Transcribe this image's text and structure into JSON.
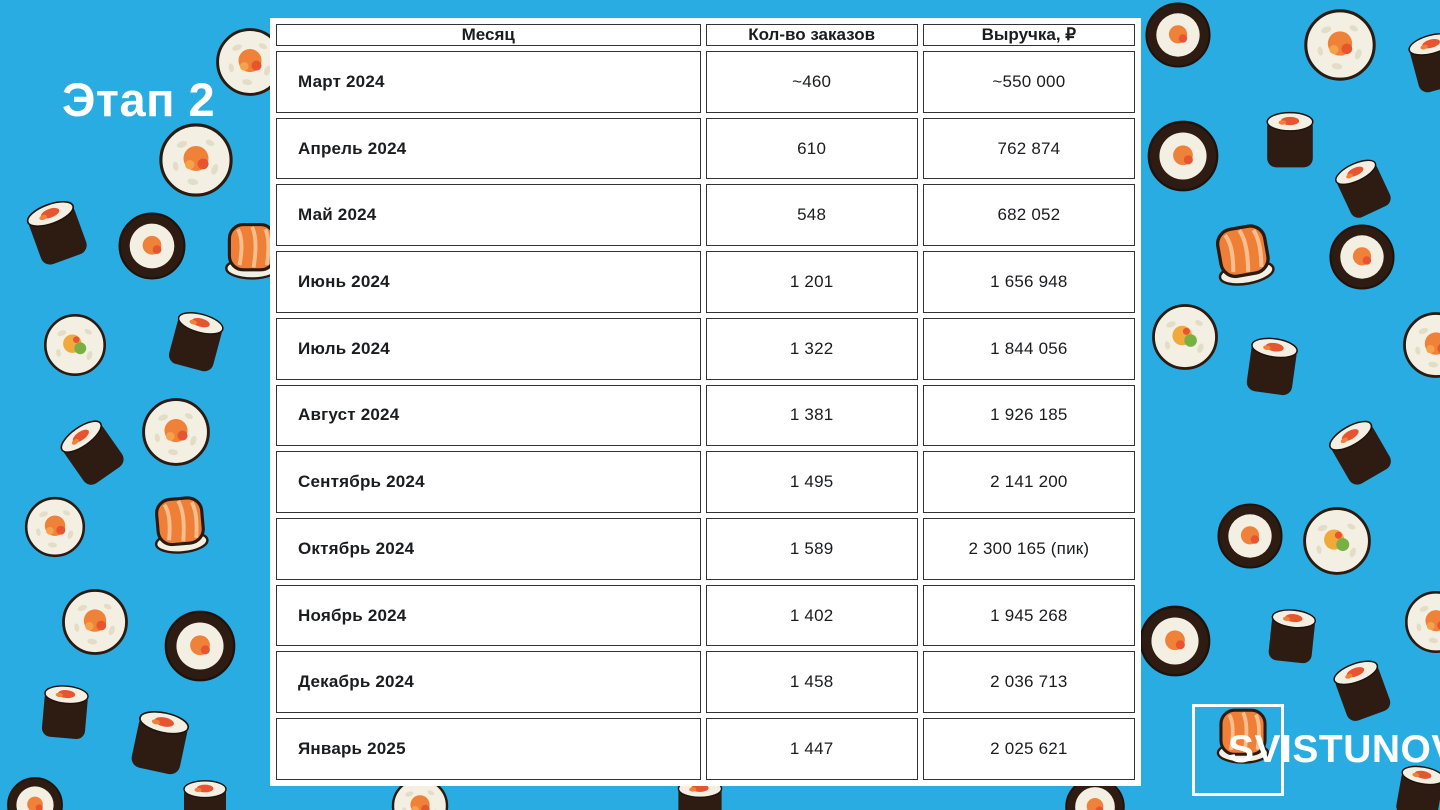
{
  "slide": {
    "title": "Этап 2",
    "brand": "SVISTUNOV",
    "background_color": "#28ACE2"
  },
  "table": {
    "headers": [
      "Месяц",
      "Кол-во заказов",
      "Выручка, ₽"
    ],
    "rows": [
      [
        "Март 2024",
        "~460",
        "~550 000"
      ],
      [
        "Апрель 2024",
        "610",
        "762 874"
      ],
      [
        "Май 2024",
        "548",
        "682 052"
      ],
      [
        "Июнь 2024",
        "1 201",
        "1 656 948"
      ],
      [
        "Июль 2024",
        "1 322",
        "1 844 056"
      ],
      [
        "Август 2024",
        "1 381",
        "1 926 185"
      ],
      [
        "Сентябрь 2024",
        "1 495",
        "2 141 200"
      ],
      [
        "Октябрь 2024",
        "1 589",
        "2 300 165 (пик)"
      ],
      [
        "Ноябрь 2024",
        "1 402",
        "1 945 268"
      ],
      [
        "Декабрь 2024",
        "1 458",
        "2 036 713"
      ],
      [
        "Январь 2025",
        "1 447",
        "2 025 621"
      ]
    ]
  },
  "decor": {
    "icons": [
      "rice-maki-roll-icon",
      "avocado-maki-roll-icon",
      "dark-maki-roll-icon",
      "nori-roll-icon",
      "salmon-roll-icon",
      "logo-frame-icon"
    ]
  },
  "colors": {
    "background": "#28ACE2",
    "table_border": "#333333",
    "table_background": "#ffffff",
    "text": "#1b1c1e",
    "title_text": "#ffffff"
  }
}
